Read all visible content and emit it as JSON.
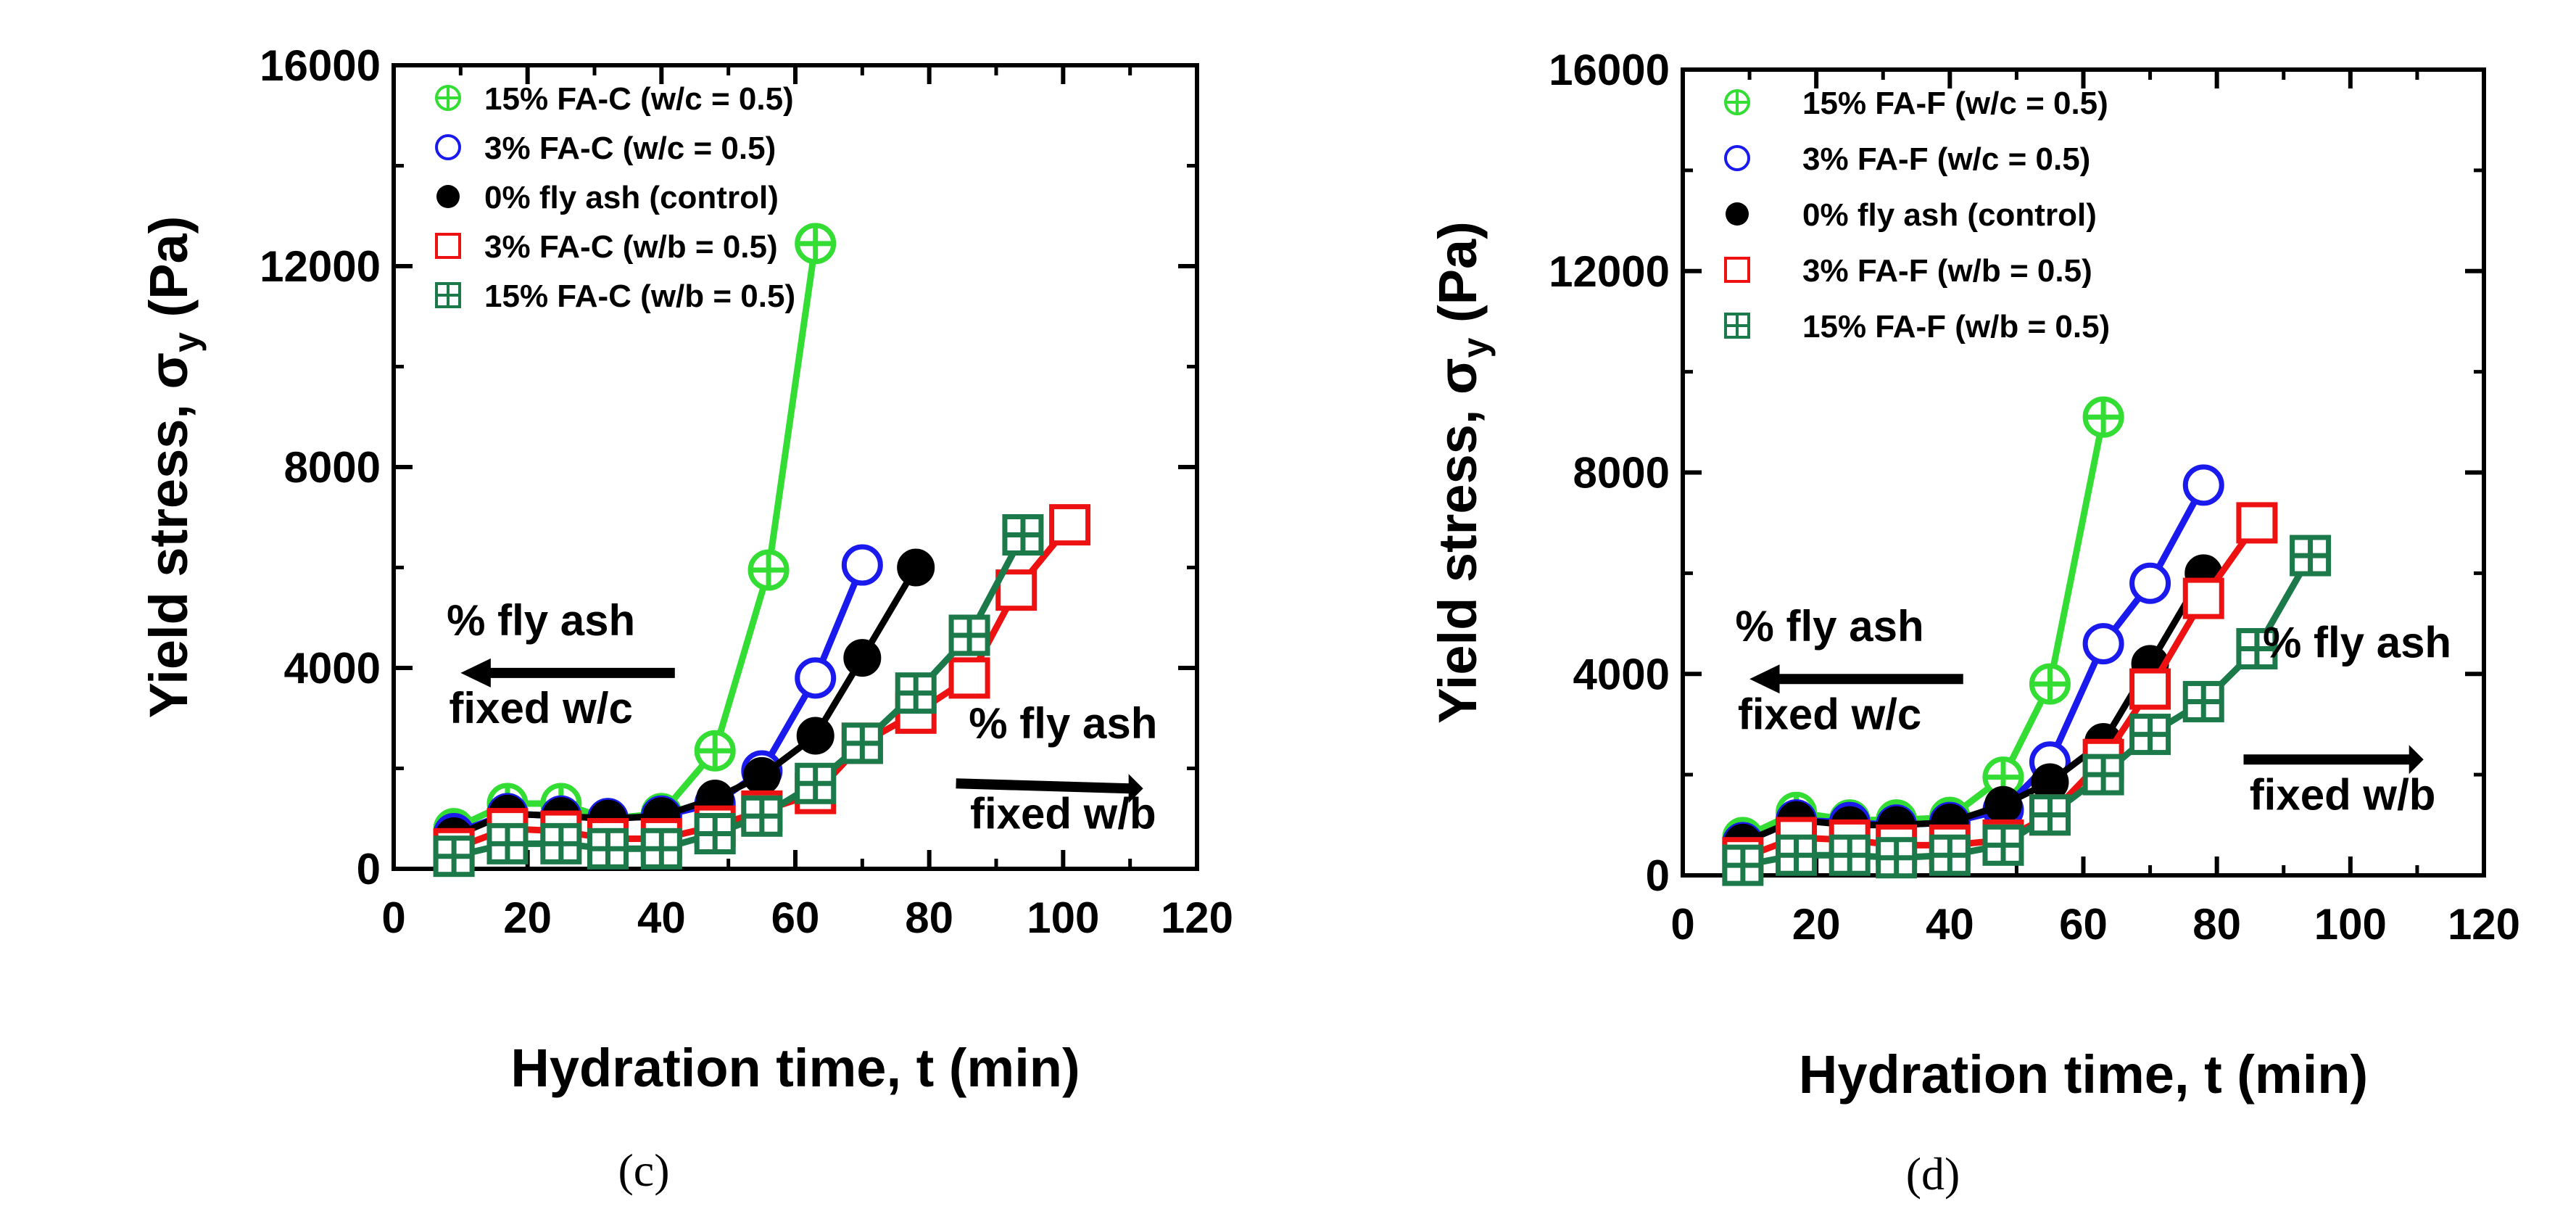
{
  "chart_data": [
    {
      "type": "line",
      "panel_label": "(c)",
      "xlabel": "Hydration time, t (min)",
      "ylabel_main": "Yield stress, σ",
      "ylabel_sub": "y",
      "ylabel_unit": " (Pa)",
      "xlim": [
        0,
        120
      ],
      "ylim": [
        0,
        16000
      ],
      "xticks": [
        "0",
        "20",
        "40",
        "60",
        "80",
        "100",
        "120"
      ],
      "yticks": [
        "0",
        "4000",
        "8000",
        "12000",
        "16000"
      ],
      "grid": false,
      "legend_position": "top-left",
      "annotations": {
        "left_top": "% fly ash",
        "left_bottom": "fixed w/c",
        "right_top": "% fly ash",
        "right_bottom": "fixed w/b"
      },
      "series": [
        {
          "name": "15% FA-C (w/c = 0.5)",
          "marker": "circle-plus",
          "color": "#33dd33",
          "x": [
            9,
            17,
            25,
            32,
            40,
            48,
            56,
            63
          ],
          "y": [
            800,
            1300,
            1300,
            1000,
            1100,
            2350,
            5950,
            12450
          ]
        },
        {
          "name": "3% FA-C (w/c = 0.5)",
          "marker": "circle-open",
          "color": "#1a1aee",
          "x": [
            9,
            17,
            25,
            32,
            40,
            48,
            55,
            63,
            70
          ],
          "y": [
            700,
            1100,
            1050,
            1000,
            1050,
            1300,
            1950,
            3800,
            6050
          ]
        },
        {
          "name": "0% fly ash (control)",
          "marker": "circle-filled",
          "color": "#000000",
          "x": [
            9,
            17,
            25,
            32,
            40,
            48,
            55,
            63,
            70,
            78
          ],
          "y": [
            650,
            1100,
            1050,
            1000,
            1050,
            1400,
            1850,
            2650,
            4200,
            6000
          ]
        },
        {
          "name": "3% FA-C (w/b = 0.5)",
          "marker": "square-open",
          "color": "#ee1111",
          "x": [
            9,
            17,
            25,
            32,
            40,
            48,
            55,
            63,
            70,
            78,
            86,
            93,
            101
          ],
          "y": [
            400,
            800,
            750,
            600,
            600,
            850,
            1150,
            1500,
            2500,
            3100,
            3800,
            5550,
            6850
          ]
        },
        {
          "name": "15% FA-C (w/b = 0.5)",
          "marker": "square-plus",
          "color": "#1c7a4a",
          "x": [
            9,
            17,
            25,
            32,
            40,
            48,
            55,
            63,
            70,
            78,
            86,
            94
          ],
          "y": [
            250,
            500,
            500,
            400,
            400,
            700,
            1050,
            1700,
            2500,
            3500,
            4650,
            6650
          ]
        }
      ]
    },
    {
      "type": "line",
      "panel_label": "(d)",
      "xlabel": "Hydration time, t (min)",
      "ylabel_main": "Yield stress, σ",
      "ylabel_sub": "y",
      "ylabel_unit": " (Pa)",
      "xlim": [
        0,
        120
      ],
      "ylim": [
        0,
        16000
      ],
      "xticks": [
        "0",
        "20",
        "40",
        "60",
        "80",
        "100",
        "120"
      ],
      "yticks": [
        "0",
        "4000",
        "8000",
        "12000",
        "16000"
      ],
      "grid": false,
      "legend_position": "top-left",
      "annotations": {
        "left_top": "% fly ash",
        "left_bottom": "fixed w/c",
        "right_top": "% fly ash",
        "right_bottom": "fixed w/b"
      },
      "series": [
        {
          "name": "15% FA-F (w/c = 0.5)",
          "marker": "circle-plus",
          "color": "#33dd33",
          "x": [
            9,
            17,
            25,
            32,
            40,
            48,
            55,
            63
          ],
          "y": [
            750,
            1250,
            1100,
            1100,
            1150,
            1950,
            3800,
            9100
          ]
        },
        {
          "name": "3% FA-F (w/c = 0.5)",
          "marker": "circle-open",
          "color": "#1a1aee",
          "x": [
            9,
            17,
            25,
            32,
            40,
            48,
            55,
            63,
            70,
            78
          ],
          "y": [
            650,
            1100,
            1050,
            1000,
            1050,
            1300,
            2250,
            4600,
            5800,
            7750
          ]
        },
        {
          "name": "0% fly ash (control)",
          "marker": "circle-filled",
          "color": "#000000",
          "x": [
            9,
            17,
            25,
            32,
            40,
            48,
            55,
            63,
            70,
            78
          ],
          "y": [
            650,
            1100,
            1000,
            1000,
            1050,
            1400,
            1850,
            2650,
            4200,
            6000
          ]
        },
        {
          "name": "3% FA-F (w/b = 0.5)",
          "marker": "square-open",
          "color": "#ee1111",
          "x": [
            9,
            17,
            25,
            32,
            40,
            48,
            55,
            63,
            70,
            78,
            86
          ],
          "y": [
            350,
            750,
            700,
            600,
            600,
            700,
            1200,
            2300,
            3700,
            5500,
            7000
          ]
        },
        {
          "name": "15% FA-F (w/b = 0.5)",
          "marker": "square-plus",
          "color": "#1c7a4a",
          "x": [
            9,
            17,
            25,
            32,
            40,
            48,
            55,
            63,
            70,
            78,
            86,
            94
          ],
          "y": [
            200,
            400,
            400,
            350,
            400,
            600,
            1200,
            2000,
            2800,
            3450,
            4500,
            6350
          ]
        }
      ]
    }
  ]
}
